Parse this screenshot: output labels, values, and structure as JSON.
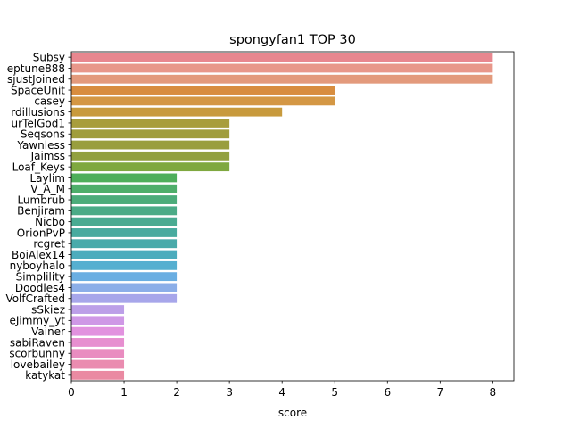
{
  "chart_data": {
    "type": "bar",
    "orientation": "horizontal",
    "title": "spongyfan1 TOP 30",
    "xlabel": "score",
    "ylabel": "",
    "xlim": [
      0,
      8.4
    ],
    "xticks": [
      0,
      1,
      2,
      3,
      4,
      5,
      6,
      7,
      8
    ],
    "grid": false,
    "categories": [
      "Subsy",
      "eptune888",
      "sjustJoined",
      "SpaceUnit",
      "casey",
      "rdillusions",
      "urTelGod1",
      "Seqsons",
      "Yawnless",
      "Jaimss",
      "Loaf_Keys",
      "Laylim",
      "V_A_M",
      "Lumbrub",
      "Benjiram",
      "Nicbo",
      "OrionPvP",
      "rcgret",
      "BoiAlex14",
      "nyboyhalo",
      "Simplility",
      "Doodles4",
      "VolfCrafted",
      "sSkiez",
      "eJimmy_yt",
      "Vainer",
      "sabiRaven",
      "scorbunny",
      "lovebailey",
      "katykat"
    ],
    "values": [
      8,
      8,
      8,
      5,
      5,
      4,
      3,
      3,
      3,
      3,
      3,
      2,
      2,
      2,
      2,
      2,
      2,
      2,
      2,
      2,
      2,
      2,
      2,
      1,
      1,
      1,
      1,
      1,
      1,
      1
    ],
    "colors": [
      "#e8878f",
      "#e8978a",
      "#e39a7c",
      "#d88d3f",
      "#d49744",
      "#c89a3d",
      "#a89d3c",
      "#a09d3c",
      "#999e3e",
      "#92a03f",
      "#7fa83f",
      "#4eae5a",
      "#4eae6a",
      "#4cac7a",
      "#4bab87",
      "#4aab92",
      "#49ab9f",
      "#49aaaa",
      "#4cacbd",
      "#55afd0",
      "#6aaee2",
      "#8baee8",
      "#a7a6ea",
      "#bc9fe8",
      "#cf98e6",
      "#e292df",
      "#e78fd0",
      "#e98cc0",
      "#ea8cb0",
      "#ea8aa2"
    ]
  }
}
